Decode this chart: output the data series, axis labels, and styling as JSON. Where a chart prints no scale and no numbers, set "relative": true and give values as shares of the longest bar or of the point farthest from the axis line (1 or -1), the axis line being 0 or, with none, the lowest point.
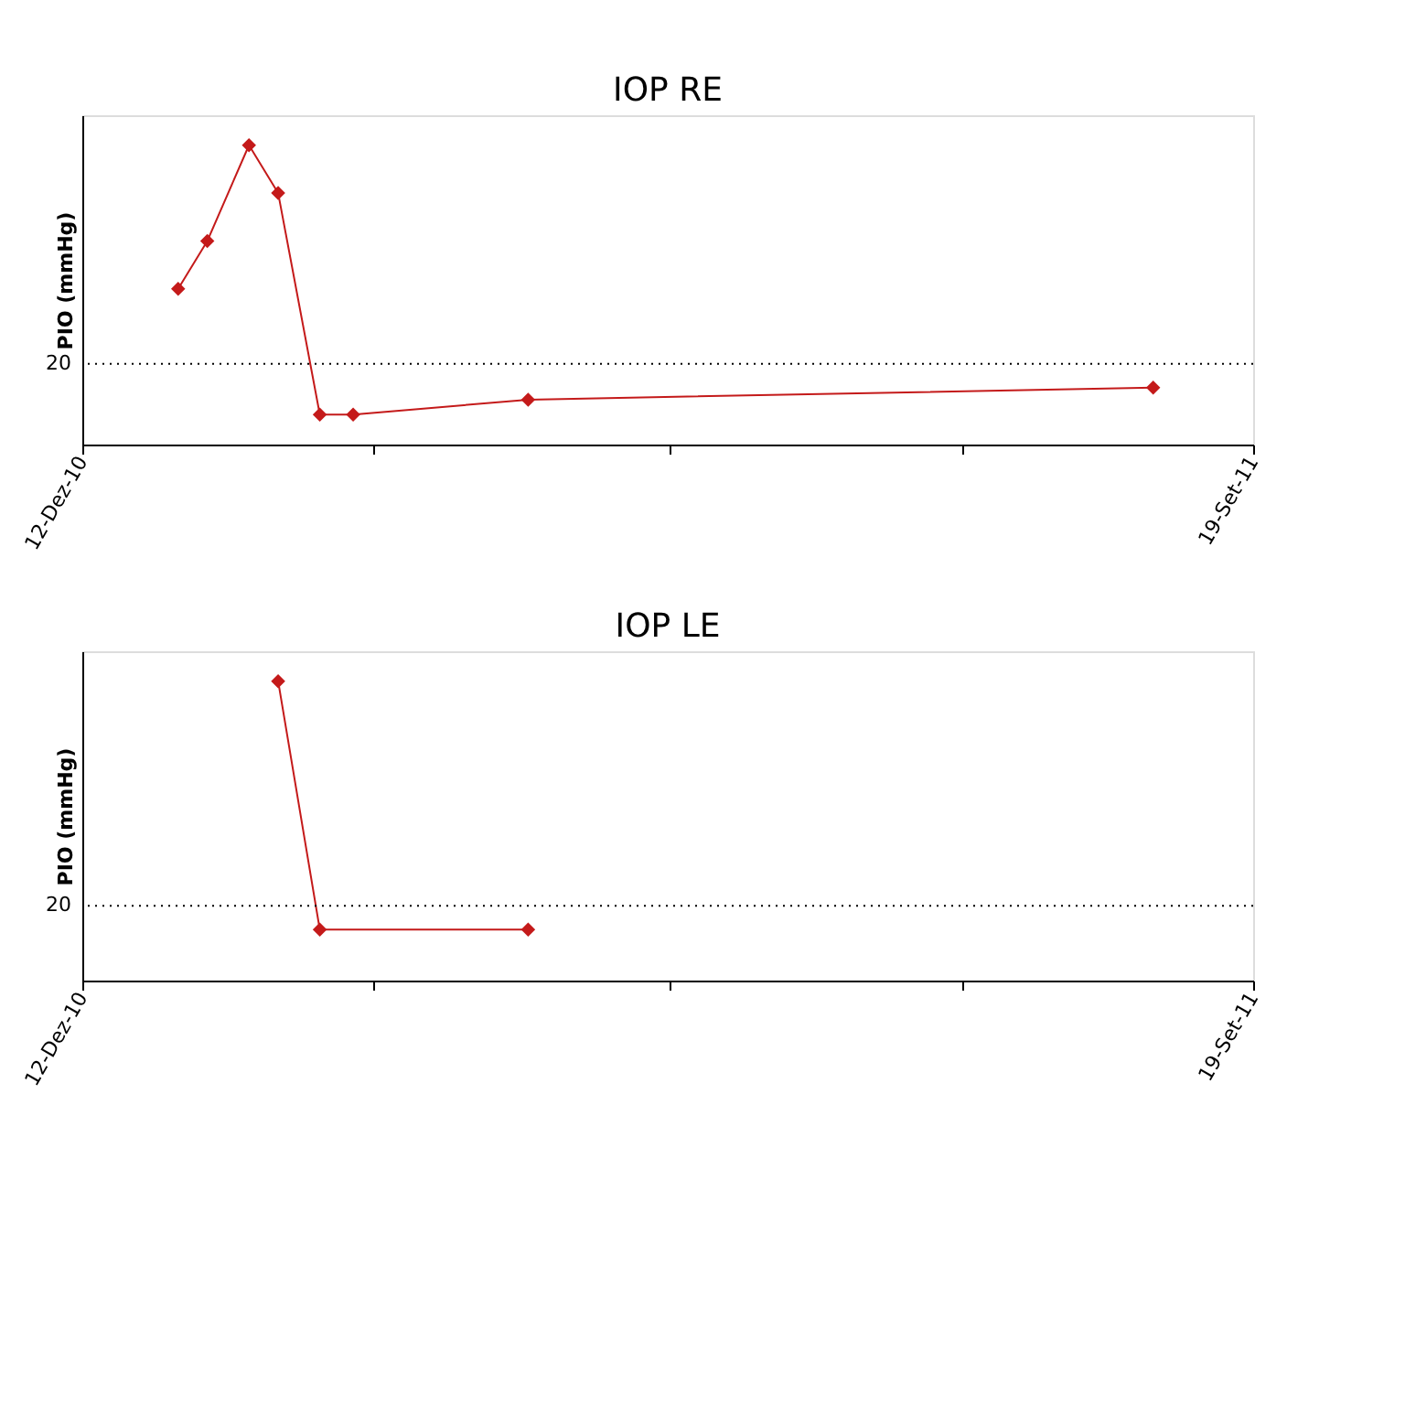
{
  "chart_data": [
    {
      "type": "line",
      "title": "IOP RE",
      "ylabel": "PIO (mmHg)",
      "relative": true,
      "marker": "diamond",
      "x": [
        "2011-01-04",
        "2011-01-11",
        "2011-01-21",
        "2011-01-28",
        "2011-02-07",
        "2011-02-15",
        "2011-03-29",
        "2011-08-26"
      ],
      "series": [
        {
          "color": "#c41a1a",
          "values": [
            0.52,
            0.68,
            1,
            0.84,
            0.1,
            0.1,
            0.15,
            0.19
          ]
        }
      ],
      "xlim": [
        "2010-12-12",
        "2011-09-19"
      ],
      "xticks": [
        {
          "value": "2010-12-12",
          "label": "12-Dez-10"
        },
        {
          "value": "2011-02-20",
          "label": null
        },
        {
          "value": "2011-05-02",
          "label": null
        },
        {
          "value": "2011-07-11",
          "label": null
        },
        {
          "value": "2011-09-19",
          "label": "19-Set-11"
        }
      ],
      "annotations": [
        "20"
      ],
      "ref_lines": [
        {
          "axis": "y",
          "value": 0.27,
          "line_style": "dotted",
          "color": "#000000"
        }
      ]
    },
    {
      "type": "line",
      "title": "IOP LE",
      "ylabel": "PIO (mmHg)",
      "relative": true,
      "marker": "diamond",
      "x": [
        "2011-01-28",
        "2011-02-07",
        "2011-03-29"
      ],
      "series": [
        {
          "color": "#c41a1a",
          "values": [
            1,
            0.17,
            0.17
          ]
        }
      ],
      "xlim": [
        "2010-12-12",
        "2011-09-19"
      ],
      "xticks": [
        {
          "value": "2010-12-12",
          "label": "12-Dez-10"
        },
        {
          "value": "2011-02-20",
          "label": null
        },
        {
          "value": "2011-05-02",
          "label": null
        },
        {
          "value": "2011-07-11",
          "label": null
        },
        {
          "value": "2011-09-19",
          "label": "19-Set-11"
        }
      ],
      "annotations": [
        "20"
      ],
      "ref_lines": [
        {
          "axis": "y",
          "value": 0.25,
          "line_style": "dotted",
          "color": "#000000"
        }
      ]
    }
  ]
}
